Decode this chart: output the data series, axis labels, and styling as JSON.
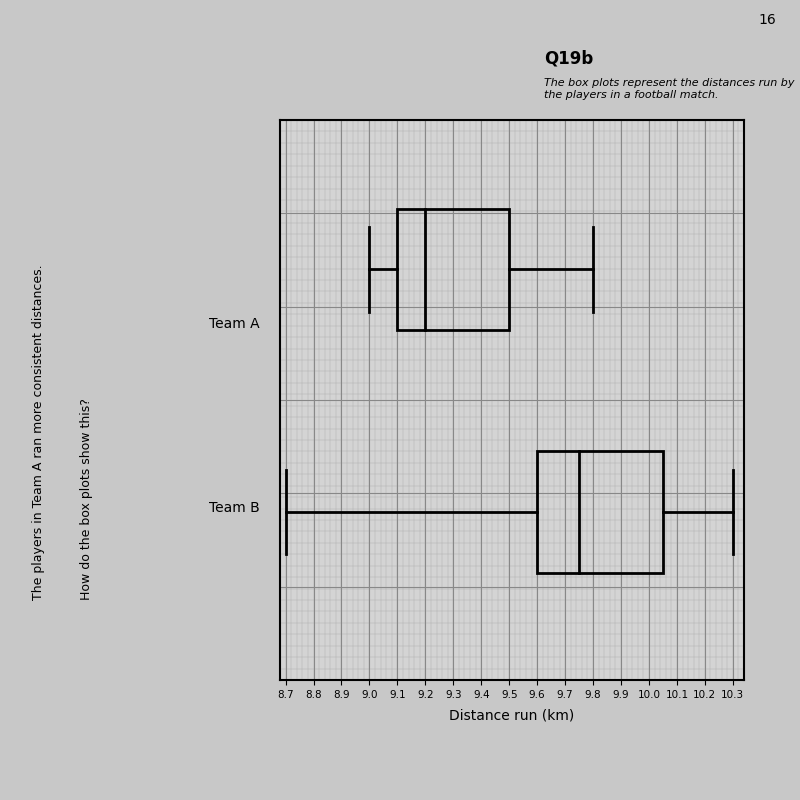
{
  "title": "Q19b",
  "description": "The box plots represent the distances run by the players in a football match.",
  "xlabel": "Distance run (km)",
  "xticks": [
    8.7,
    8.8,
    8.9,
    9.0,
    9.1,
    9.2,
    9.3,
    9.4,
    9.5,
    9.6,
    9.7,
    9.8,
    9.9,
    10.0,
    10.1,
    10.2,
    10.3
  ],
  "xlim": [
    8.68,
    10.34
  ],
  "teams": [
    "Team A",
    "Team B"
  ],
  "team_A": {
    "min": 9.0,
    "q1": 9.1,
    "median": 9.2,
    "q3": 9.5,
    "max": 9.8
  },
  "team_B": {
    "min": 8.7,
    "q1": 9.6,
    "median": 9.75,
    "q3": 10.05,
    "max": 10.3
  },
  "annotation_line1": "The players in Team A ran more consistent distances.",
  "annotation_line2": "How do the box plots show this?",
  "page_number": "16",
  "bg_color": "#c8c8c8",
  "grid_bg": "#d4d4d4",
  "grid_major_color": "#888888",
  "grid_minor_color": "#aaaaaa"
}
